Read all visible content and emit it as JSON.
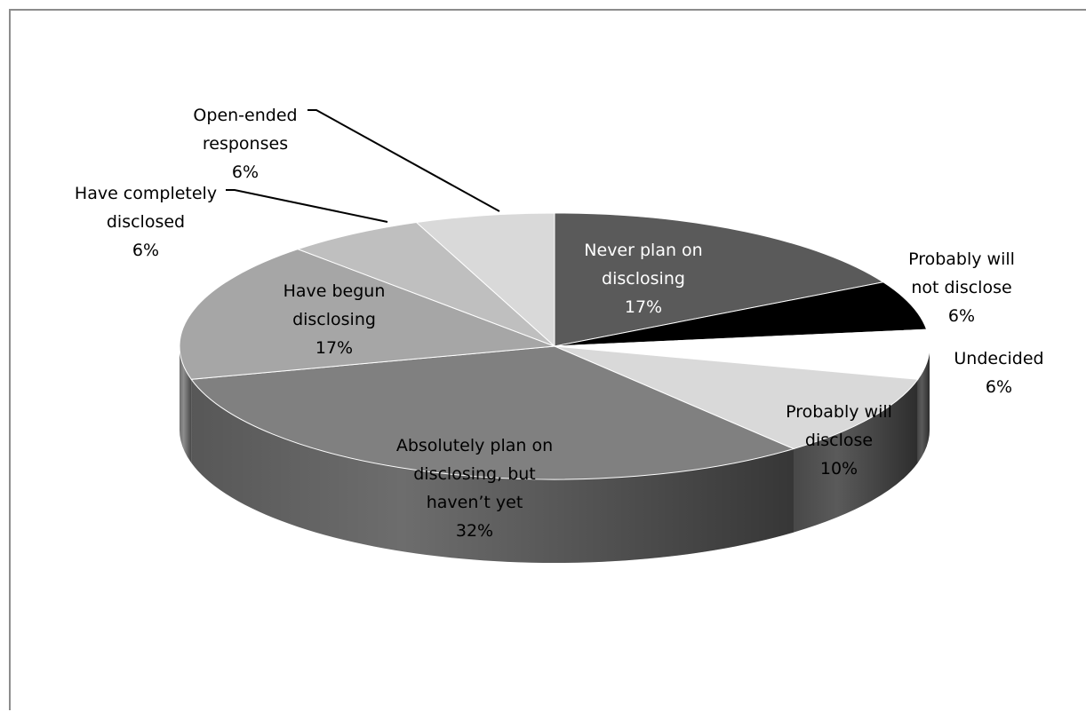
{
  "chart_data": {
    "type": "pie",
    "title": "",
    "categories": [
      "Never plan on disclosing",
      "Probably will not disclose",
      "Undecided",
      "Probably will disclose",
      "Absolutely plan on disclosing, but haven’t yet",
      "Have begun disclosing",
      "Have completely disclosed",
      "Open-ended responses"
    ],
    "values": [
      17,
      6,
      6,
      10,
      32,
      17,
      6,
      6
    ],
    "unit": "%",
    "colors": [
      "#5a5a5a",
      "#000000",
      "#ffffff",
      "#d9d9d9",
      "#808080",
      "#a6a6a6",
      "#bfbfbf",
      "#d9d9d9"
    ],
    "labels": [
      {
        "lines": [
          "Never plan on",
          "disclosing"
        ],
        "value": "17%"
      },
      {
        "lines": [
          "Probably will",
          "not disclose"
        ],
        "value": "6%"
      },
      {
        "lines": [
          "Undecided"
        ],
        "value": "6%"
      },
      {
        "lines": [
          "Probably will",
          "disclose"
        ],
        "value": "10%"
      },
      {
        "lines": [
          "Absolutely plan on",
          "disclosing, but",
          "haven’t yet"
        ],
        "value": "32%"
      },
      {
        "lines": [
          "Have begun",
          "disclosing"
        ],
        "value": "17%"
      },
      {
        "lines": [
          "Have completely",
          "disclosed"
        ],
        "value": "6%"
      },
      {
        "lines": [
          "Open-ended",
          "responses"
        ],
        "value": "6%"
      }
    ],
    "legend": "none",
    "style": "3d-pie"
  }
}
